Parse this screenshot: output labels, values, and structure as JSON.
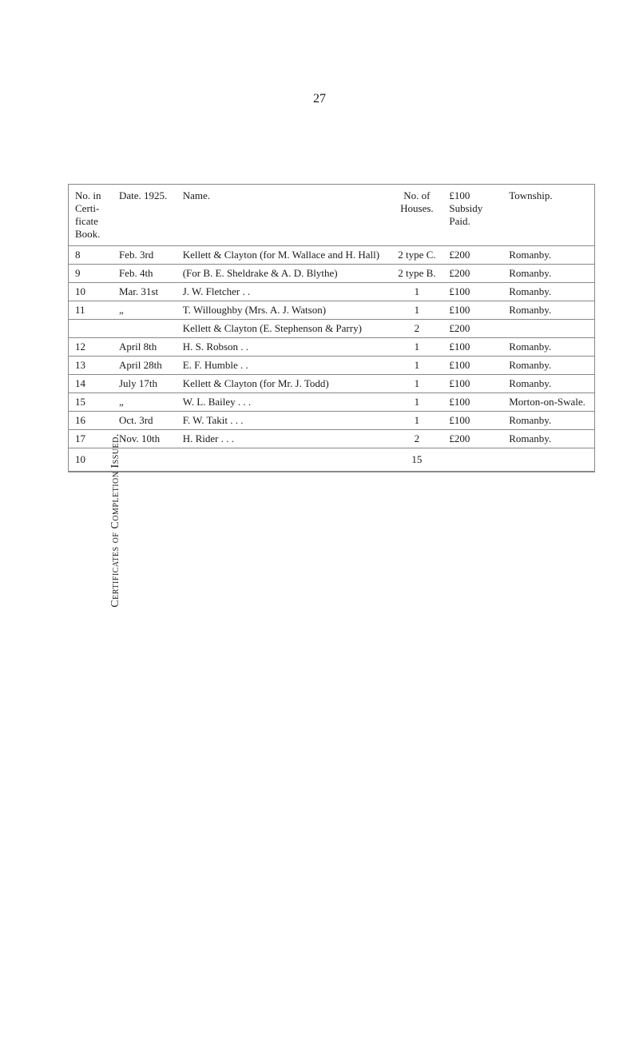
{
  "page_number": "27",
  "caption": "Certificates of Completion Issued.",
  "headers": {
    "num": "No. in Certi-ficate Book.",
    "date": "Date. 1925.",
    "name": "Name.",
    "houses": "No. of Houses.",
    "subsidy": "£100 Subsidy Paid.",
    "township": "Township."
  },
  "section1": {
    "num": "8",
    "date": "Feb. 3rd",
    "name": "Kellett & Clayton (for M. Wallace and H. Hall)",
    "houses": "2 type C.",
    "subsidy": "£200",
    "township": "Romanby."
  },
  "rows": [
    {
      "num": "9",
      "date": "Feb. 4th",
      "name": "(For B. E. Sheldrake & A. D. Blythe)",
      "houses": "2 type B.",
      "subsidy": "£200",
      "township": "Romanby."
    },
    {
      "num": "10",
      "date": "Mar. 31st",
      "name": "J. W. Fletcher . .",
      "houses": "1",
      "subsidy": "£100",
      "township": "Romanby."
    },
    {
      "num": "11",
      "date": "„",
      "name": "T. Willoughby (Mrs. A. J. Watson)",
      "houses": "1",
      "subsidy": "£100",
      "township": "Romanby."
    },
    {
      "num": "",
      "date": "",
      "name": "Kellett & Clayton (E. Stephenson & Parry)",
      "houses": "2",
      "subsidy": "£200",
      "township": ""
    },
    {
      "num": "12",
      "date": "April 8th",
      "name": "H. S. Robson . .",
      "houses": "1",
      "subsidy": "£100",
      "township": "Romanby."
    },
    {
      "num": "13",
      "date": "April 28th",
      "name": "E. F. Humble . .",
      "houses": "1",
      "subsidy": "£100",
      "township": "Romanby."
    },
    {
      "num": "14",
      "date": "July 17th",
      "name": "Kellett & Clayton (for Mr. J. Todd)",
      "houses": "1",
      "subsidy": "£100",
      "township": "Romanby."
    },
    {
      "num": "15",
      "date": "„",
      "name": "W. L. Bailey . . .",
      "houses": "1",
      "subsidy": "£100",
      "township": "Morton-on-Swale."
    },
    {
      "num": "16",
      "date": "Oct. 3rd",
      "name": "F. W. Takit . . .",
      "houses": "1",
      "subsidy": "£100",
      "township": "Romanby."
    },
    {
      "num": "17",
      "date": "Nov. 10th",
      "name": "H. Rider . . .",
      "houses": "2",
      "subsidy": "£200",
      "township": "Romanby."
    }
  ],
  "totals": {
    "num": "10",
    "houses": "15"
  }
}
